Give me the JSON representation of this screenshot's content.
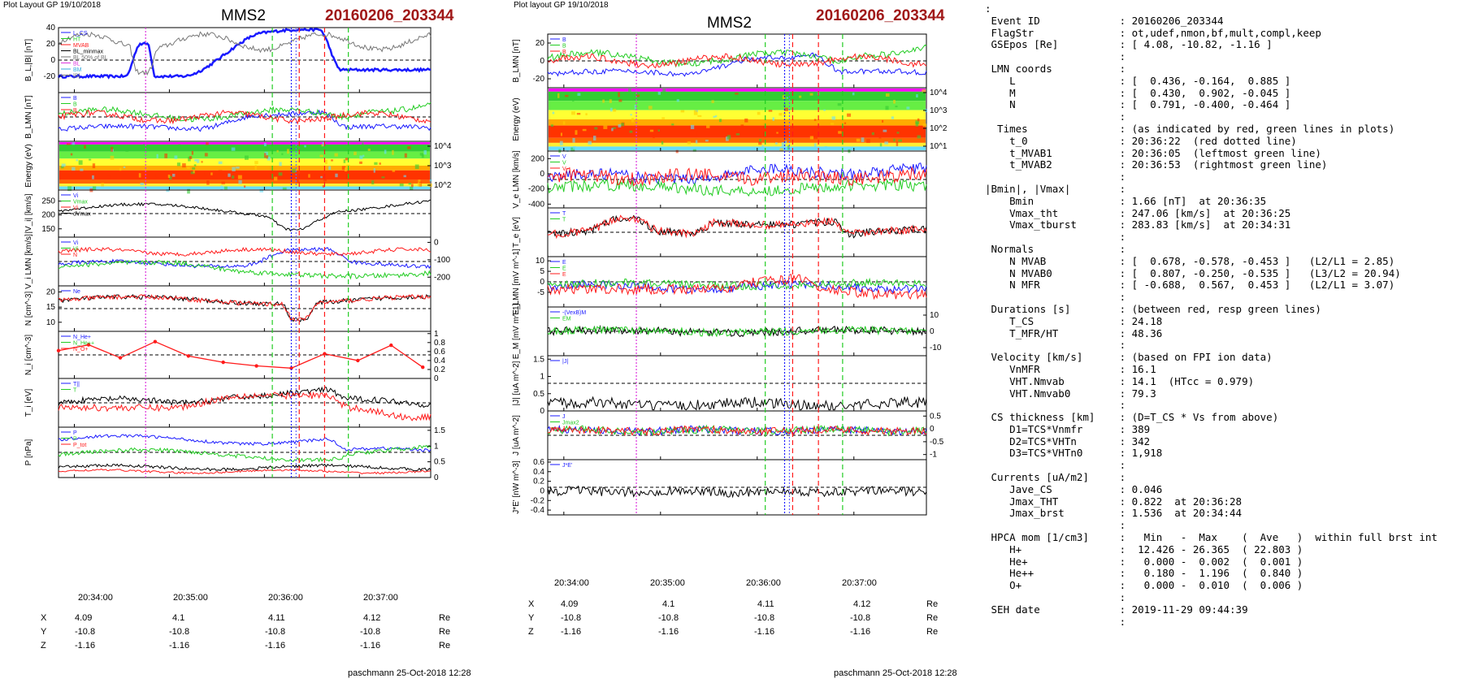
{
  "left_plot": {
    "layout_label": "Plot Layout GP 19/10/2018",
    "spacecraft": "MMS2",
    "event": "20160206_203344",
    "footer": "paschmann 25-Oct-2018 12:28",
    "time_ticks": [
      "20:34:00",
      "20:35:00",
      "20:36:00",
      "20:37:00"
    ],
    "coord_rows": [
      {
        "label": "X",
        "values": [
          "4.09",
          "4.1",
          "4.11",
          "4.12"
        ],
        "unit": "Re"
      },
      {
        "label": "Y",
        "values": [
          "-10.8",
          "-10.8",
          "-10.8",
          "-10.8"
        ],
        "unit": "Re"
      },
      {
        "label": "Z",
        "values": [
          "-1.16",
          "-1.16",
          "-1.16",
          "-1.16"
        ],
        "unit": "Re"
      }
    ]
  },
  "right_plot": {
    "layout_label": "Plot layout GP 19/10/2018",
    "spacecraft": "MMS2",
    "event": "20160206_203344",
    "footer": "paschmann 25-Oct-2018 12:28",
    "time_ticks": [
      "20:34:00",
      "20:35:00",
      "20:36:00",
      "20:37:00"
    ],
    "coord_rows": [
      {
        "label": "X",
        "values": [
          "4.09",
          "4.1",
          "4.11",
          "4.12"
        ],
        "unit": "Re"
      },
      {
        "label": "Y",
        "values": [
          "-10.8",
          "-10.8",
          "-10.8",
          "-10.8"
        ],
        "unit": "Re"
      },
      {
        "label": "Z",
        "values": [
          "-1.16",
          "-1.16",
          "-1.16",
          "-1.16"
        ],
        "unit": "Re"
      }
    ]
  },
  "colors": {
    "blue": "#1a1aff",
    "red": "#ff1a1a",
    "green": "#22cc22",
    "black": "#000000",
    "gray": "#777777",
    "magenta": "#dd33dd",
    "cyan": "#33aadd",
    "event_red": "#a01818"
  },
  "chart_data": [
    {
      "type": "line",
      "panel": "left-1",
      "ylabel": "B_L,|B| [nT]",
      "ylim": [
        -40,
        40
      ],
      "yticks": [
        -20,
        0,
        20,
        40
      ],
      "legend": [
        "L_CS",
        "HT",
        "MVAB",
        "BL_minmax",
        "BL 50% of BL",
        "BL",
        "BM",
        "|B|"
      ],
      "series": [
        {
          "name": "BL",
          "color": "#1a1aff",
          "shape": "bl"
        },
        {
          "name": "|B|",
          "color": "#777777",
          "shape": "bmag"
        }
      ]
    },
    {
      "type": "line",
      "panel": "left-2",
      "ylabel": "B_LMN [nT]",
      "ylim": [
        -30,
        30
      ],
      "yticks": [],
      "legend": [
        "B",
        "B",
        "B"
      ],
      "series": [
        {
          "name": "BL",
          "color": "#1a1aff",
          "shape": "bl2"
        },
        {
          "name": "BM",
          "color": "#22cc22",
          "shape": "bm"
        },
        {
          "name": "BN",
          "color": "#ff1a1a",
          "shape": "bn"
        }
      ]
    },
    {
      "type": "heatmap",
      "panel": "left-3",
      "ylabel": "Energy (eV)",
      "yticks": [
        "10^4",
        "10^3",
        "10^2"
      ]
    },
    {
      "type": "line",
      "panel": "left-4",
      "ylabel": "|V_i| [km/s]",
      "ylim": [
        120,
        290
      ],
      "yticks": [
        150,
        200,
        250
      ],
      "legend": [
        "Vi",
        "Vmax",
        "Vi",
        "dVmax"
      ],
      "series": [
        {
          "name": "|Vi|",
          "color": "#000000",
          "shape": "vi"
        }
      ]
    },
    {
      "type": "line",
      "panel": "left-5",
      "ylabel": "V_i LMN [km/s]",
      "ylim": [
        -250,
        30
      ],
      "yticks": [
        0,
        -100,
        -200
      ],
      "legend": [
        "Vi",
        "Vi",
        "N"
      ],
      "series": [
        {
          "name": "VL",
          "color": "#1a1aff",
          "shape": "vl"
        },
        {
          "name": "VM",
          "color": "#22cc22",
          "shape": "vm"
        },
        {
          "name": "VN",
          "color": "#ff1a1a",
          "shape": "vn"
        }
      ]
    },
    {
      "type": "line",
      "panel": "left-6",
      "ylabel": "N [cm^-3]",
      "ylim": [
        7,
        22
      ],
      "yticks": [
        10,
        15,
        20
      ],
      "legend": [
        "Ne"
      ],
      "series": [
        {
          "name": "Ne",
          "color": "#000000",
          "shape": "n"
        },
        {
          "name": "Ni",
          "color": "#ff1a1a",
          "shape": "n"
        }
      ]
    },
    {
      "type": "line",
      "panel": "left-7",
      "ylabel": "N_i [cm^-3]",
      "ylim": [
        0,
        1.05
      ],
      "yticks": [
        0.0,
        0.2,
        0.4,
        0.6,
        0.8,
        1.0
      ],
      "legend": [
        "N_He+",
        "N_He++",
        "N_O+"
      ],
      "series": [
        {
          "name": "N_He++",
          "color": "#ff1a1a",
          "x": [
            "20:33:50",
            "20:34:09",
            "20:34:29",
            "20:34:51",
            "20:35:12",
            "20:35:34",
            "20:35:55",
            "20:36:17",
            "20:36:38",
            "20:36:59",
            "20:37:20",
            "20:37:40"
          ],
          "y": [
            0.62,
            0.75,
            0.46,
            0.82,
            0.5,
            0.36,
            0.28,
            0.23,
            0.55,
            0.4,
            0.74,
            0.25
          ]
        }
      ]
    },
    {
      "type": "line",
      "panel": "left-8",
      "ylabel": "T_i [eV]",
      "ylim": [
        0,
        1
      ],
      "yticks": [],
      "legend": [
        "T||",
        "T"
      ],
      "series": [
        {
          "name": "T",
          "color": "#000000",
          "shape": "ti"
        },
        {
          "name": "T||",
          "color": "#ff1a1a",
          "shape": "tpar"
        }
      ]
    },
    {
      "type": "line",
      "panel": "left-9",
      "ylabel": "P [nPa]",
      "ylim": [
        0,
        1.6
      ],
      "yticks": [
        0.0,
        0.5,
        1.0,
        1.5
      ],
      "legend": [
        "P",
        "P",
        "P_tot"
      ],
      "series": [
        {
          "name": "Pb",
          "color": "#1a1aff",
          "shape": "p1"
        },
        {
          "name": "Pi",
          "color": "#22cc22",
          "shape": "p2"
        },
        {
          "name": "Pe",
          "color": "#ff1a1a",
          "shape": "p3"
        },
        {
          "name": "Ptot",
          "color": "#000000",
          "shape": "p4"
        }
      ]
    },
    {
      "type": "line",
      "panel": "right-1",
      "ylabel": "B_LMN [nT]",
      "ylim": [
        -30,
        30
      ],
      "yticks": [
        -20,
        0,
        20
      ],
      "legend": [
        "B",
        "B",
        "B"
      ],
      "series": [
        {
          "name": "BL",
          "color": "#1a1aff",
          "shape": "bl2"
        },
        {
          "name": "BM",
          "color": "#22cc22",
          "shape": "bm"
        },
        {
          "name": "BN",
          "color": "#ff1a1a",
          "shape": "bn"
        }
      ]
    },
    {
      "type": "heatmap",
      "panel": "right-2",
      "ylabel": "Energy (eV)",
      "yticks": [
        "10^4",
        "10^3",
        "10^2",
        "10^1"
      ]
    },
    {
      "type": "line",
      "panel": "right-3",
      "ylabel": "V_e LMN [km/s]",
      "ylim": [
        -450,
        300
      ],
      "yticks": [
        200,
        0,
        -200,
        -400
      ],
      "legend": [
        "V",
        "V",
        "V"
      ],
      "series": [
        {
          "name": "VL",
          "color": "#1a1aff",
          "shape": "vel"
        },
        {
          "name": "VM",
          "color": "#22cc22",
          "shape": "vem"
        },
        {
          "name": "VN",
          "color": "#ff1a1a",
          "shape": "ven"
        }
      ]
    },
    {
      "type": "line",
      "panel": "right-4",
      "ylabel": "T_e [eV]",
      "ylim": [
        0,
        1
      ],
      "yticks": [],
      "legend": [
        "T",
        "T"
      ],
      "series": [
        {
          "name": "T",
          "color": "#000000",
          "shape": "te"
        },
        {
          "name": "T||",
          "color": "#ff1a1a",
          "shape": "te"
        }
      ]
    },
    {
      "type": "line",
      "panel": "right-5",
      "ylabel": "E_LMN [mV m^-1]",
      "ylim": [
        -12,
        12
      ],
      "yticks": [
        10,
        5,
        0,
        -5
      ],
      "legend": [
        "E",
        "E",
        "E"
      ],
      "series": [
        {
          "name": "EL",
          "color": "#1a1aff",
          "shape": "el"
        },
        {
          "name": "EM",
          "color": "#22cc22",
          "shape": "em"
        },
        {
          "name": "EN",
          "color": "#ff1a1a",
          "shape": "en"
        }
      ]
    },
    {
      "type": "line",
      "panel": "right-6",
      "ylabel": "E_M [mV m^-1]",
      "ylim": [
        -15,
        15
      ],
      "yticks": [
        10,
        0,
        -10
      ],
      "legend": [
        "-(VexB)M",
        "EM"
      ],
      "series": [
        {
          "name": "-(VexB)M",
          "color": "#000000",
          "shape": "emm"
        },
        {
          "name": "EM",
          "color": "#22cc22",
          "shape": "emm"
        }
      ]
    },
    {
      "type": "line",
      "panel": "right-7",
      "ylabel": "|J| [uA m^-2]",
      "ylim": [
        0,
        1.6
      ],
      "yticks": [
        0.0,
        0.5,
        1.0,
        1.5
      ],
      "legend": [
        "|J|"
      ],
      "series": [
        {
          "name": "|J|",
          "color": "#000000",
          "shape": "j"
        }
      ]
    },
    {
      "type": "line",
      "panel": "right-8",
      "ylabel": "J [uA m^-2]",
      "ylim": [
        -1.2,
        0.7
      ],
      "yticks": [
        0.5,
        0.0,
        -0.5,
        -1.0
      ],
      "legend": [
        "J",
        "Jmax2",
        "J"
      ],
      "series": [
        {
          "name": "JL",
          "color": "#1a1aff",
          "shape": "jc"
        },
        {
          "name": "JM",
          "color": "#22cc22",
          "shape": "jc"
        },
        {
          "name": "JN",
          "color": "#ff1a1a",
          "shape": "jc"
        }
      ]
    },
    {
      "type": "line",
      "panel": "right-9",
      "ylabel": "J*E' [nW m^-3]",
      "ylim": [
        -0.5,
        0.65
      ],
      "yticks": [
        0.6,
        0.4,
        0.2,
        0.0,
        -0.2,
        -0.4
      ],
      "legend": [
        "J*E'"
      ],
      "series": [
        {
          "name": "J*E'",
          "color": "#000000",
          "shape": "je"
        }
      ]
    }
  ],
  "vertical_markers": {
    "t0": "20:36:22",
    "t_mvab1": "20:36:05",
    "t_mvab2": "20:36:53",
    "magenta": "20:34:45",
    "blue_dotted": [
      "20:36:17",
      "20:36:20"
    ]
  },
  "info_lines": [
    ":",
    " Event ID             : 20160206_203344",
    " FlagStr              : ot,udef,nmon,bf,mult,compl,keep",
    " GSEpos [Re]          : [ 4.08, -10.82, -1.16 ]",
    "                      :",
    " LMN coords           :",
    "    L                 : [  0.436, -0.164,  0.885 ]",
    "    M                 : [  0.430,  0.902, -0.045 ]",
    "    N                 : [  0.791, -0.400, -0.464 ]",
    "                      :",
    "  Times               : (as indicated by red, green lines in plots)",
    "    t_0               : 20:36:22  (red dotted line)",
    "    t_MVAB1           : 20:36:05  (leftmost green line)",
    "    t_MVAB2           : 20:36:53  (rightmost green line)",
    "                      :",
    "|Bmin|, |Vmax|        :",
    "    Bmin              : 1.66 [nT]  at 20:36:35",
    "    Vmax_tht          : 247.06 [km/s]  at 20:36:25",
    "    Vmax_tburst       : 283.83 [km/s]  at 20:34:31",
    "                      :",
    " Normals              :",
    "    N MVAB            : [  0.678, -0.578, -0.453 ]   (L2/L1 = 2.85)",
    "    N MVAB0           : [  0.807, -0.250, -0.535 ]   (L3/L2 = 20.94)",
    "    N MFR             : [ -0.688,  0.567,  0.453 ]   (L2/L1 = 3.07)",
    "                      :",
    " Durations [s]        : (between red, resp green lines)",
    "    T_CS              : 24.18",
    "    T_MFR/HT          : 48.36",
    "                      :",
    " Velocity [km/s]      : (based on FPI ion data)",
    "    VnMFR             : 16.1",
    "    VHT.Nmvab         : 14.1  (HTcc = 0.979)",
    "    VHT.Nmvab0        : 79.3",
    "                      :",
    " CS thickness [km]    : (D=T_CS * Vs from above)",
    "    D1=TCS*Vnmfr      : 389",
    "    D2=TCS*VHTn       : 342",
    "    D3=TCS*VHTn0      : 1,918",
    "                      :",
    " Currents [uA/m2]     :",
    "    Jave_CS           : 0.046",
    "    Jmax_THT          : 0.822  at 20:36:28",
    "    Jmax_brst         : 1.536  at 20:34:44",
    "                      :",
    " HPCA mom [1/cm3]     :   Min   -  Max    (  Ave   )  within full brst int",
    "    H+                :  12.426 - 26.365  ( 22.803 )",
    "    He+               :   0.000 -  0.002  (  0.001 )",
    "    He++              :   0.180 -  1.196  (  0.840 )",
    "    O+                :   0.000 -  0.010  (  0.006 )",
    "                      :",
    " SEH date             : 2019-11-29 09:44:39",
    "                      :"
  ]
}
